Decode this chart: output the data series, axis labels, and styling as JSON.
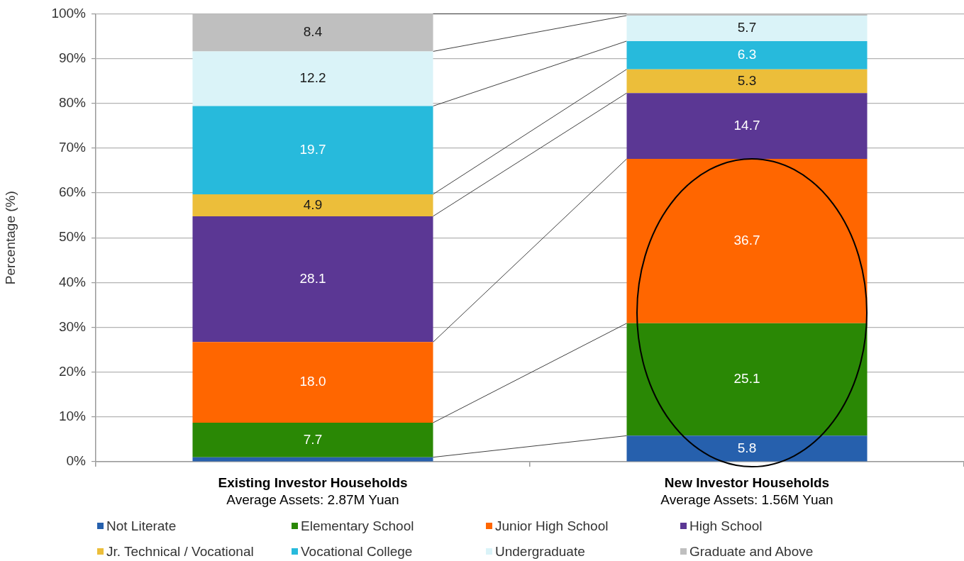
{
  "chart_data": {
    "type": "bar",
    "stacked": true,
    "categories": [
      "Existing Investor Households\nAverage Assets: 2.87M Yuan",
      "New Investor Households\nAverage Assets: 1.56M Yuan"
    ],
    "ylabel": "Percentage (%)",
    "ylim": [
      0,
      100
    ],
    "yticks": [
      {
        "value": 0,
        "label": "0%"
      },
      {
        "value": 10,
        "label": "10%"
      },
      {
        "value": 20,
        "label": "20%"
      },
      {
        "value": 30,
        "label": "30%"
      },
      {
        "value": 40,
        "label": "40%"
      },
      {
        "value": 50,
        "label": "50%"
      },
      {
        "value": 60,
        "label": "60%"
      },
      {
        "value": 70,
        "label": "70%"
      },
      {
        "value": 80,
        "label": "80%"
      },
      {
        "value": 90,
        "label": "90%"
      },
      {
        "value": 100,
        "label": "100%"
      }
    ],
    "grid": "y",
    "legend": "bottom",
    "series": [
      {
        "name": "Not Literate",
        "color": "#2660ad",
        "values": [
          1.0,
          5.8
        ],
        "value_labels": [
          null,
          "5.8"
        ]
      },
      {
        "name": "Elementary School",
        "color": "#2a8805",
        "values": [
          7.7,
          25.1
        ],
        "value_labels": [
          "7.7",
          "25.1"
        ]
      },
      {
        "name": "Junior High School",
        "color": "#ff6600",
        "values": [
          18.0,
          36.7
        ],
        "value_labels": [
          "18.0",
          "36.7"
        ]
      },
      {
        "name": "High School",
        "color": "#5b3794",
        "values": [
          28.1,
          14.7
        ],
        "value_labels": [
          "28.1",
          "14.7"
        ]
      },
      {
        "name": "Jr. Technical / Vocational",
        "color": "#ecbe3a",
        "values": [
          4.9,
          5.3
        ],
        "value_labels": [
          "4.9",
          "5.3"
        ]
      },
      {
        "name": "Vocational College",
        "color": "#27badc",
        "values": [
          19.7,
          6.3
        ],
        "value_labels": [
          "19.7",
          "6.3"
        ]
      },
      {
        "name": "Undergraduate",
        "color": "#daf3f8",
        "values": [
          12.2,
          5.7
        ],
        "value_labels": [
          "12.2",
          "5.7"
        ]
      },
      {
        "name": "Graduate and Above",
        "color": "#bfbfbf",
        "values": [
          8.4,
          0.4
        ],
        "value_labels": [
          "8.4",
          null
        ]
      }
    ]
  }
}
